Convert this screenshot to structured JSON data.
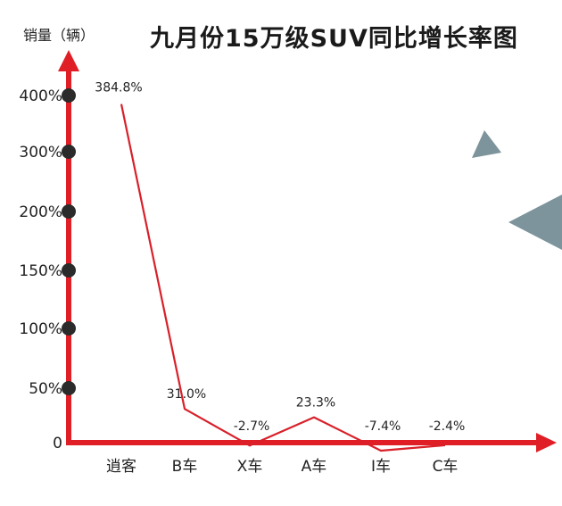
{
  "chart_data": {
    "type": "line",
    "title": "九月份15万级SUV同比增长率图",
    "ylabel": "销量（辆）",
    "xlabel": "",
    "categories": [
      "逍客",
      "B车",
      "X车",
      "A车",
      "I车",
      "C车"
    ],
    "values": [
      384.8,
      31.0,
      -2.7,
      23.3,
      -7.4,
      -2.4
    ],
    "data_labels": [
      "384.8%",
      "31.0%",
      "-2.7%",
      "23.3%",
      "-7.4%",
      "-2.4%"
    ],
    "y_ticks": [
      {
        "label": "400%",
        "value": 400
      },
      {
        "label": "300%",
        "value": 300
      },
      {
        "label": "200%",
        "value": 200
      },
      {
        "label": "150%",
        "value": 150
      },
      {
        "label": "100%",
        "value": 100
      },
      {
        "label": "50%",
        "value": 50
      },
      {
        "label": "0",
        "value": 0
      }
    ],
    "grid": false,
    "legend": "none",
    "colors": {
      "line": "#d8202a",
      "axis": "#e01e26",
      "marker": "#2b2b2b",
      "decoration": "#7d949c"
    }
  }
}
